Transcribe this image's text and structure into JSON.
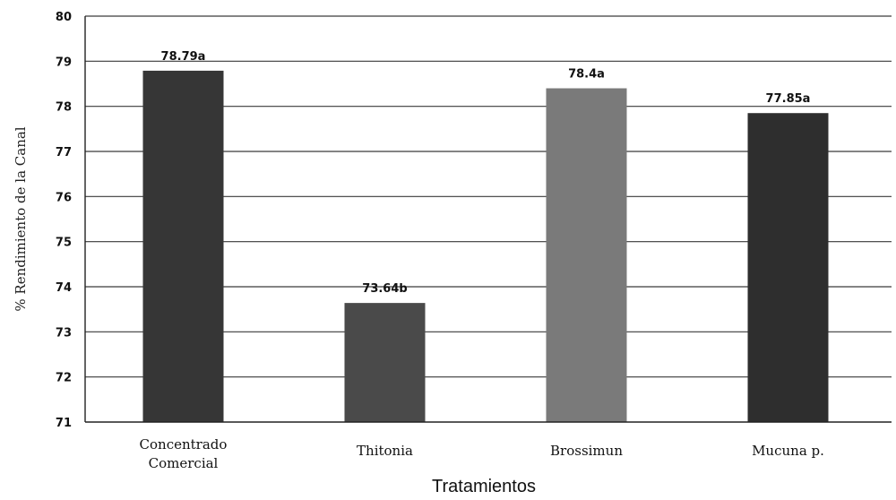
{
  "chart_data": {
    "type": "bar",
    "categories": [
      "Concentrado Comercial",
      "Thitonia",
      "Brossimun",
      "Mucuna p."
    ],
    "category_lines": [
      [
        "Concentrado",
        "Comercial"
      ],
      [
        "Thitonia"
      ],
      [
        "Brossimun"
      ],
      [
        "Mucuna p."
      ]
    ],
    "values": [
      78.79,
      73.64,
      78.4,
      77.85
    ],
    "data_labels": [
      "78.79a",
      "73.64b",
      "78.4a",
      "77.85a"
    ],
    "bar_colors": [
      "#363636",
      "#4a4a4a",
      "#7a7a7a",
      "#2e2e2e"
    ],
    "xlabel": "Tratamientos",
    "ylabel": "% Rendimiento de la Canal",
    "ylim": [
      71,
      80
    ],
    "yticks": [
      71,
      72,
      73,
      74,
      75,
      76,
      77,
      78,
      79,
      80
    ],
    "grid": true,
    "legend": "none"
  }
}
